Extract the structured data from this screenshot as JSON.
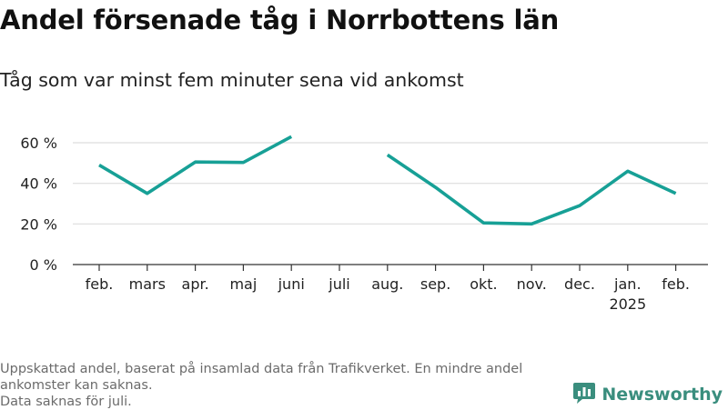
{
  "header": {
    "title": "Andel försenade tåg i Norrbottens län",
    "subtitle": "Tåg som var minst fem minuter sena vid ankomst"
  },
  "footnote": {
    "line1": "Uppskattad andel, baserat på insamlad data från Trafikverket. En mindre andel",
    "line2": "ankomster kan saknas.",
    "line3": "Data saknas för juli."
  },
  "brand": {
    "name": "Newsworthy",
    "icon": "newsworthy-logo-icon"
  },
  "colors": {
    "line": "#17a096",
    "grid": "#dddddd",
    "axis": "#333333",
    "text": "#222222",
    "brand": "#3a8e7e"
  },
  "chart_data": {
    "type": "line",
    "categories": [
      "feb.",
      "mars",
      "apr.",
      "maj",
      "juni",
      "juli",
      "aug.",
      "sep.",
      "okt.",
      "nov.",
      "dec.",
      "jan.",
      "feb."
    ],
    "category_sublabels": [
      "",
      "",
      "",
      "",
      "",
      "",
      "",
      "",
      "",
      "",
      "",
      "2025",
      ""
    ],
    "series": [
      {
        "values": [
          49,
          35,
          50.5,
          50.3,
          63,
          null,
          54,
          38,
          20.5,
          20,
          29,
          46,
          35
        ]
      }
    ],
    "ylim": [
      0,
      60
    ],
    "yticks": [
      0,
      20,
      40,
      60
    ],
    "ytick_labels": [
      "0 %",
      "20 %",
      "40 %",
      "60 %"
    ],
    "grid": true,
    "legend": "none"
  }
}
